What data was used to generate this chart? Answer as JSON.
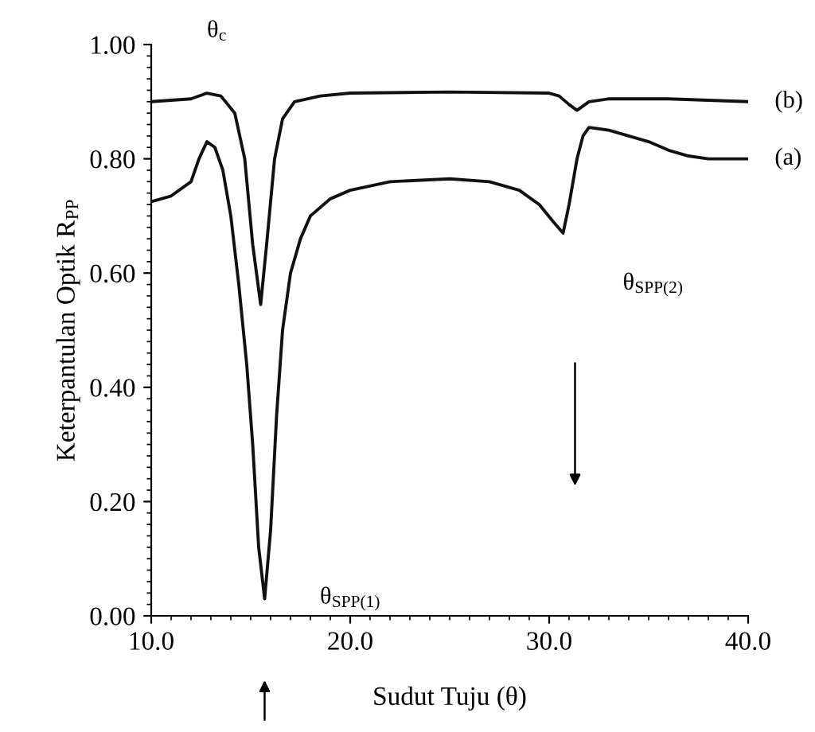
{
  "chart_data": {
    "type": "line",
    "xlabel": "Sudut Tuju (θ)",
    "ylabel": "Keterpantulan Optik R$_{PP}$",
    "xlim": [
      10,
      40
    ],
    "ylim": [
      0,
      1
    ],
    "xticks": [
      {
        "value": 10,
        "label": "10.0"
      },
      {
        "value": 20,
        "label": "20.0"
      },
      {
        "value": 30,
        "label": "30.0"
      },
      {
        "value": 40,
        "label": "40.0"
      }
    ],
    "yticks": [
      {
        "value": 0,
        "label": "0.00"
      },
      {
        "value": 0.2,
        "label": "0.20"
      },
      {
        "value": 0.4,
        "label": "0.40"
      },
      {
        "value": 0.6,
        "label": "0.60"
      },
      {
        "value": 0.8,
        "label": "0.80"
      },
      {
        "value": 1.0,
        "label": "1.00"
      }
    ],
    "grid": false,
    "legend": false,
    "marker": "none",
    "line_style": "solid",
    "series": [
      {
        "name": "(b)",
        "color": "#111111",
        "x": [
          10,
          12,
          12.8,
          13.5,
          14.2,
          14.7,
          15.1,
          15.5,
          15.8,
          16.2,
          16.6,
          17.2,
          18.5,
          20,
          25,
          30,
          30.5,
          31.0,
          31.4,
          32,
          33,
          36,
          40
        ],
        "values": [
          0.9,
          0.905,
          0.915,
          0.91,
          0.88,
          0.8,
          0.65,
          0.545,
          0.65,
          0.8,
          0.87,
          0.9,
          0.91,
          0.915,
          0.917,
          0.915,
          0.91,
          0.895,
          0.885,
          0.9,
          0.905,
          0.905,
          0.9
        ]
      },
      {
        "name": "(a)",
        "color": "#111111",
        "x": [
          10,
          11,
          12,
          12.4,
          12.8,
          13.2,
          13.6,
          14.0,
          14.4,
          14.8,
          15.1,
          15.4,
          15.7,
          16.0,
          16.3,
          16.6,
          17.0,
          17.5,
          18,
          19,
          20,
          22,
          25,
          27,
          28.5,
          29.5,
          30.2,
          30.7,
          31.0,
          31.4,
          31.7,
          32.0,
          33,
          34,
          35,
          36,
          37,
          38,
          40
        ],
        "values": [
          0.725,
          0.735,
          0.76,
          0.8,
          0.83,
          0.82,
          0.78,
          0.7,
          0.58,
          0.44,
          0.3,
          0.12,
          0.03,
          0.15,
          0.35,
          0.5,
          0.6,
          0.66,
          0.7,
          0.73,
          0.745,
          0.76,
          0.765,
          0.76,
          0.745,
          0.72,
          0.69,
          0.67,
          0.72,
          0.8,
          0.84,
          0.855,
          0.85,
          0.84,
          0.83,
          0.815,
          0.805,
          0.8,
          0.8
        ]
      }
    ],
    "annotations": [
      {
        "text": "θ$_{c}$",
        "x": 12.8,
        "y": 0.915
      },
      {
        "text": "θ$_{SPP(1)}$",
        "x": 15.7,
        "y": 0.03
      },
      "θ$_{SPP(2)}$"
    ]
  }
}
